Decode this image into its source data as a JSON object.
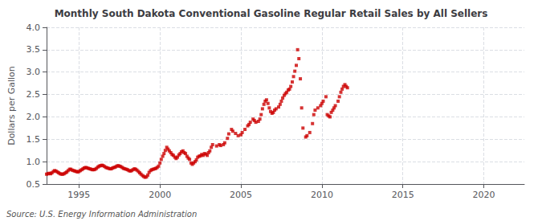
{
  "chart_data": {
    "type": "scatter",
    "title": "Monthly South Dakota Conventional Gasoline Regular Retail Sales by All Sellers",
    "ylabel": "Dollars per Gallon",
    "annotations": [
      "Source: U.S. Energy Information Administration"
    ],
    "color": "#cc0000",
    "marker": "square",
    "grid": true,
    "xlim": [
      1993.0,
      2022.5
    ],
    "xticks": [
      1995,
      2000,
      2005,
      2010,
      2015,
      2020
    ],
    "ylim": [
      0.5,
      4.0
    ],
    "yticks": [
      0.5,
      {
        "value": 1.0,
        "label": "1.0"
      },
      1.5,
      {
        "value": 2.0,
        "label": "2.0"
      },
      2.5,
      {
        "value": 3.0,
        "label": "3.0"
      },
      3.5,
      {
        "value": 4.0,
        "label": "4.0"
      }
    ],
    "x": [
      1993.0,
      1993.08,
      1993.17,
      1993.25,
      1993.33,
      1993.42,
      1993.5,
      1993.58,
      1993.67,
      1993.75,
      1993.83,
      1993.92,
      1994.0,
      1994.08,
      1994.17,
      1994.25,
      1994.33,
      1994.42,
      1994.5,
      1994.58,
      1994.67,
      1994.75,
      1994.83,
      1994.92,
      1995.0,
      1995.08,
      1995.17,
      1995.25,
      1995.33,
      1995.42,
      1995.5,
      1995.58,
      1995.67,
      1995.75,
      1995.83,
      1995.92,
      1996.0,
      1996.08,
      1996.17,
      1996.25,
      1996.33,
      1996.42,
      1996.5,
      1996.58,
      1996.67,
      1996.75,
      1996.83,
      1996.92,
      1997.0,
      1997.08,
      1997.17,
      1997.25,
      1997.33,
      1997.42,
      1997.5,
      1997.58,
      1997.67,
      1997.75,
      1997.83,
      1997.92,
      1998.0,
      1998.08,
      1998.17,
      1998.25,
      1998.33,
      1998.42,
      1998.5,
      1998.58,
      1998.67,
      1998.75,
      1998.83,
      1998.92,
      1999.0,
      1999.08,
      1999.17,
      1999.25,
      1999.33,
      1999.42,
      1999.5,
      1999.58,
      1999.67,
      1999.75,
      1999.83,
      1999.92,
      2000.0,
      2000.08,
      2000.17,
      2000.25,
      2000.33,
      2000.42,
      2000.5,
      2000.58,
      2000.67,
      2000.75,
      2000.83,
      2000.92,
      2001.0,
      2001.08,
      2001.17,
      2001.25,
      2001.33,
      2001.42,
      2001.5,
      2001.58,
      2001.67,
      2001.75,
      2001.83,
      2001.92,
      2002.0,
      2002.08,
      2002.17,
      2002.25,
      2002.33,
      2002.42,
      2002.5,
      2002.58,
      2002.67,
      2002.75,
      2002.83,
      2002.92,
      2003.0,
      2003.08,
      2003.17,
      2003.25,
      2003.5,
      2003.67,
      2003.75,
      2003.92,
      2004.0,
      2004.17,
      2004.25,
      2004.42,
      2004.5,
      2004.67,
      2004.83,
      2005.0,
      2005.08,
      2005.25,
      2005.42,
      2005.5,
      2005.58,
      2005.75,
      2005.83,
      2005.92,
      2006.08,
      2006.17,
      2006.25,
      2006.33,
      2006.42,
      2006.5,
      2006.58,
      2006.67,
      2006.75,
      2006.83,
      2006.92,
      2007.0,
      2007.08,
      2007.17,
      2007.33,
      2007.42,
      2007.5,
      2007.58,
      2007.67,
      2007.75,
      2007.83,
      2007.92,
      2008.0,
      2008.08,
      2008.17,
      2008.25,
      2008.33,
      2008.42,
      2008.5,
      2008.58,
      2008.67,
      2008.75,
      2008.83,
      2009.0,
      2009.08,
      2009.25,
      2009.42,
      2009.5,
      2009.58,
      2009.75,
      2009.92,
      2010.0,
      2010.08,
      2010.25,
      2010.33,
      2010.42,
      2010.5,
      2010.58,
      2010.67,
      2010.75,
      2010.83,
      2011.0,
      2011.08,
      2011.17,
      2011.25,
      2011.33,
      2011.42,
      2011.5,
      2011.58
    ],
    "values": [
      0.72,
      0.73,
      0.74,
      0.73,
      0.75,
      0.78,
      0.8,
      0.79,
      0.77,
      0.75,
      0.73,
      0.72,
      0.72,
      0.73,
      0.75,
      0.77,
      0.8,
      0.83,
      0.83,
      0.81,
      0.8,
      0.79,
      0.78,
      0.77,
      0.78,
      0.8,
      0.82,
      0.84,
      0.86,
      0.87,
      0.86,
      0.85,
      0.84,
      0.83,
      0.82,
      0.82,
      0.83,
      0.85,
      0.88,
      0.9,
      0.91,
      0.92,
      0.91,
      0.89,
      0.87,
      0.86,
      0.85,
      0.84,
      0.84,
      0.86,
      0.87,
      0.88,
      0.9,
      0.91,
      0.9,
      0.89,
      0.87,
      0.85,
      0.84,
      0.83,
      0.82,
      0.8,
      0.79,
      0.8,
      0.82,
      0.84,
      0.83,
      0.81,
      0.78,
      0.75,
      0.72,
      0.69,
      0.67,
      0.65,
      0.66,
      0.7,
      0.76,
      0.8,
      0.82,
      0.83,
      0.84,
      0.85,
      0.87,
      0.9,
      0.97,
      1.05,
      1.12,
      1.18,
      1.25,
      1.32,
      1.28,
      1.24,
      1.2,
      1.16,
      1.14,
      1.1,
      1.07,
      1.1,
      1.15,
      1.18,
      1.22,
      1.24,
      1.2,
      1.18,
      1.12,
      1.08,
      1.05,
      0.97,
      0.94,
      0.97,
      1.0,
      1.04,
      1.1,
      1.12,
      1.13,
      1.16,
      1.14,
      1.18,
      1.17,
      1.14,
      1.2,
      1.24,
      1.32,
      1.38,
      1.35,
      1.38,
      1.36,
      1.38,
      1.42,
      1.52,
      1.62,
      1.72,
      1.68,
      1.63,
      1.58,
      1.6,
      1.65,
      1.72,
      1.8,
      1.83,
      1.88,
      1.95,
      1.92,
      1.88,
      1.9,
      1.95,
      2.05,
      2.18,
      2.28,
      2.35,
      2.38,
      2.3,
      2.2,
      2.12,
      2.08,
      2.1,
      2.15,
      2.18,
      2.22,
      2.28,
      2.35,
      2.42,
      2.48,
      2.52,
      2.55,
      2.6,
      2.62,
      2.68,
      2.78,
      2.9,
      3.02,
      3.15,
      3.5,
      3.3,
      2.85,
      2.2,
      1.75,
      1.55,
      1.58,
      1.65,
      1.85,
      2.05,
      2.15,
      2.2,
      2.25,
      2.3,
      2.35,
      2.45,
      2.05,
      2.02,
      2.0,
      2.1,
      2.15,
      2.2,
      2.25,
      2.35,
      2.45,
      2.55,
      2.62,
      2.68,
      2.72,
      2.68,
      2.65
    ]
  }
}
